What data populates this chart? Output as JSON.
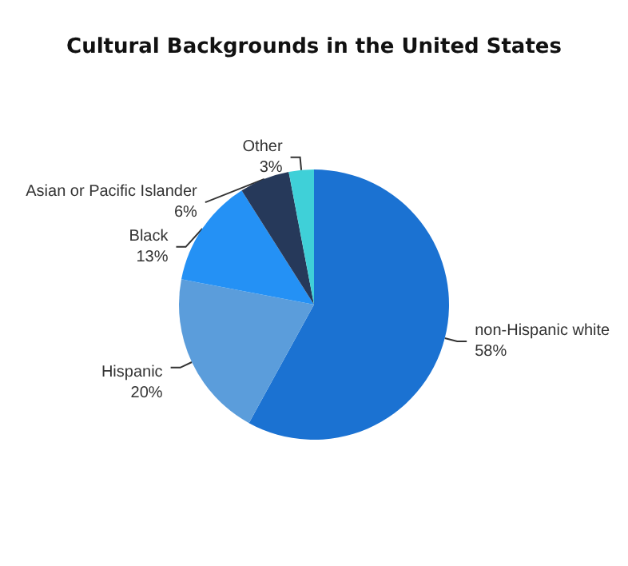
{
  "chart_data": {
    "type": "pie",
    "title": "Cultural Backgrounds in the United States",
    "categories": [
      "non-Hispanic white",
      "Hispanic",
      "Black",
      "Asian or Pacific Islander",
      "Other"
    ],
    "values": [
      58,
      20,
      13,
      6,
      3
    ],
    "colors": [
      "#1b72d2",
      "#5b9ddb",
      "#2491f5",
      "#26395a",
      "#3fd0d8"
    ],
    "value_labels": [
      "58%",
      "20%",
      "13%",
      "6%",
      "3%"
    ]
  }
}
